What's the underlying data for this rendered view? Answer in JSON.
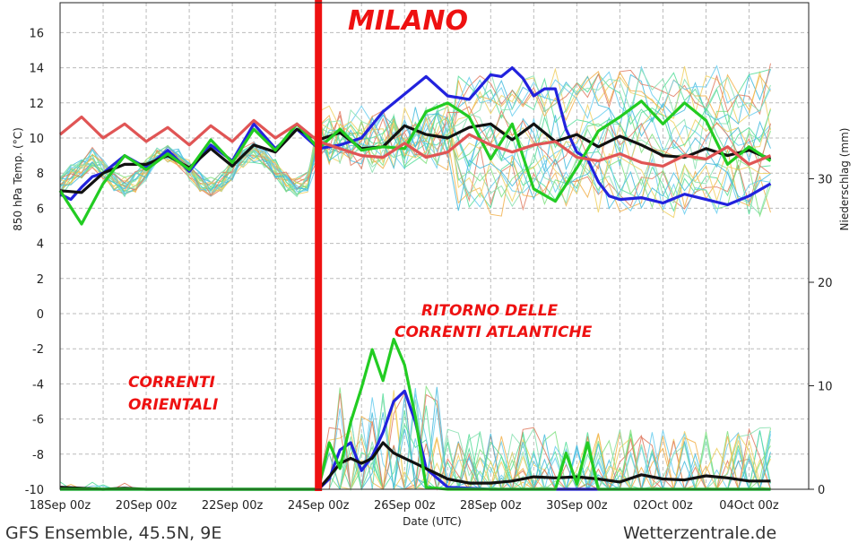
{
  "chart_data": {
    "type": "line",
    "title": "MILANO",
    "xlabel": "Date (UTC)",
    "ylabel_left": "850 hPa Temp. (°C)",
    "ylabel_right": "Niederschlag (mm)",
    "x_ticks": [
      "18Sep 00z",
      "20Sep 00z",
      "22Sep 00z",
      "24Sep 00z",
      "26Sep 00z",
      "28Sep 00z",
      "30Sep 00z",
      "02Oct 00z",
      "04Oct 00z"
    ],
    "y_left_ticks": [
      16,
      14,
      12,
      10,
      8,
      6,
      4,
      2,
      0,
      -2,
      -4,
      -6,
      -8,
      -10
    ],
    "y_left_lim": [
      -10,
      17.5
    ],
    "y_right_ticks": [
      0,
      10,
      20,
      30
    ],
    "y_right_lim": [
      0,
      31.5
    ],
    "x_range_days": [
      0,
      16.5
    ],
    "grid": true,
    "marker_date": "24Sep 00z",
    "annotations": [
      {
        "text_lines": [
          "CORRENTI",
          "ORIENTALI"
        ]
      },
      {
        "text_lines": [
          "RITORNO DELLE",
          "CORRENTI ATLANTICHE"
        ]
      }
    ],
    "series": [
      {
        "role": "temperature-control",
        "color": "#2222dd",
        "x": [
          0,
          0.25,
          0.5,
          0.75,
          1,
          1.5,
          2,
          2.5,
          3,
          3.5,
          4,
          4.5,
          5,
          5.5,
          6,
          6.5,
          7,
          7.5,
          8,
          8.5,
          9,
          9.5,
          10,
          10.25,
          10.5,
          10.75,
          11,
          11.25,
          11.5,
          11.75,
          12,
          12.25,
          12.5,
          12.75,
          13,
          13.5,
          14,
          14.5,
          15,
          15.5,
          16,
          16.5
        ],
        "y": [
          6.8,
          6.5,
          7.2,
          7.8,
          8.0,
          9.0,
          8.3,
          9.3,
          8.1,
          9.6,
          8.7,
          10.8,
          9.4,
          10.5,
          9.4,
          9.6,
          10.0,
          11.5,
          12.5,
          13.5,
          12.4,
          12.2,
          13.6,
          13.5,
          14.0,
          13.4,
          12.4,
          12.8,
          12.8,
          10.5,
          9.2,
          8.8,
          7.5,
          6.7,
          6.5,
          6.6,
          6.3,
          6.8,
          6.5,
          6.2,
          6.7,
          7.4
        ]
      },
      {
        "role": "temperature-mean",
        "color": "#111111",
        "x": [
          0,
          0.5,
          1,
          1.5,
          2,
          2.5,
          3,
          3.5,
          4,
          4.5,
          5,
          5.5,
          6,
          6.5,
          7,
          7.5,
          8,
          8.5,
          9,
          9.5,
          10,
          10.5,
          11,
          11.5,
          12,
          12.5,
          13,
          13.5,
          14,
          14.5,
          15,
          15.5,
          16,
          16.5
        ],
        "y": [
          7.0,
          6.9,
          8.0,
          8.5,
          8.5,
          9.0,
          8.3,
          9.4,
          8.4,
          9.6,
          9.2,
          10.5,
          9.9,
          10.3,
          9.4,
          9.5,
          10.7,
          10.2,
          10.0,
          10.6,
          10.8,
          9.9,
          10.8,
          9.8,
          10.2,
          9.5,
          10.1,
          9.6,
          9.0,
          8.9,
          9.4,
          9.0,
          9.3,
          8.8
        ]
      },
      {
        "role": "temperature-member",
        "color": "#22cc22",
        "x": [
          0,
          0.5,
          1,
          1.5,
          2,
          2.5,
          3,
          3.5,
          4,
          4.5,
          5,
          5.5,
          6,
          6.5,
          7,
          7.5,
          8,
          8.5,
          9,
          9.5,
          10,
          10.5,
          11,
          11.5,
          12,
          12.5,
          13,
          13.5,
          14,
          14.5,
          15,
          15.5,
          16,
          16.5
        ],
        "y": [
          7.0,
          5.1,
          7.4,
          9.0,
          8.2,
          9.1,
          8.2,
          9.9,
          8.6,
          10.5,
          9.3,
          10.8,
          9.4,
          10.5,
          9.3,
          9.5,
          9.4,
          11.5,
          12.0,
          11.2,
          8.8,
          10.8,
          7.1,
          6.4,
          8.3,
          10.4,
          11.2,
          12.1,
          10.8,
          12.0,
          11.0,
          8.5,
          9.5,
          8.7
        ]
      },
      {
        "role": "temperature-member",
        "color": "#e05555",
        "x": [
          0,
          0.5,
          1,
          1.5,
          2,
          2.5,
          3,
          3.5,
          4,
          4.5,
          5,
          5.5,
          6,
          6.5,
          7,
          7.5,
          8,
          8.5,
          9,
          9.5,
          10,
          10.5,
          11,
          11.5,
          12,
          12.5,
          13,
          13.5,
          14,
          14.5,
          15,
          15.5,
          16,
          16.5
        ],
        "y": [
          10.2,
          11.2,
          10.0,
          10.8,
          9.8,
          10.6,
          9.6,
          10.7,
          9.8,
          11.0,
          10.0,
          10.8,
          9.8,
          9.4,
          9.0,
          8.9,
          9.7,
          8.9,
          9.2,
          10.2,
          9.6,
          9.2,
          9.6,
          9.8,
          8.9,
          8.7,
          9.1,
          8.6,
          8.4,
          9.0,
          8.8,
          9.5,
          8.5,
          9.0
        ]
      },
      {
        "role": "precipitation-control",
        "color": "#2222dd",
        "x": [
          0,
          1,
          2,
          3,
          4,
          5,
          5.5,
          6,
          6.25,
          6.5,
          6.75,
          7,
          7.25,
          7.5,
          7.75,
          8,
          8.25,
          8.5,
          9,
          10,
          12,
          14,
          16.5
        ],
        "y": [
          0,
          0,
          0,
          0,
          0,
          0,
          0,
          0,
          1.0,
          3.8,
          4.5,
          1.8,
          3.2,
          5.5,
          8.5,
          9.5,
          6.5,
          2.0,
          0.2,
          0,
          0,
          0,
          0
        ]
      },
      {
        "role": "precipitation-mean",
        "color": "#111111",
        "x": [
          0,
          0.5,
          1,
          1.5,
          2,
          2.5,
          3,
          3.5,
          4,
          4.5,
          5,
          5.5,
          6,
          6.25,
          6.5,
          6.75,
          7,
          7.25,
          7.5,
          7.75,
          8,
          8.25,
          8.5,
          9,
          9.5,
          10,
          10.5,
          11,
          11.5,
          12,
          12.5,
          13,
          13.5,
          14,
          14.5,
          15,
          15.5,
          16,
          16.5
        ],
        "y": [
          0.2,
          0.1,
          0,
          0.1,
          0,
          0,
          0,
          0,
          0,
          0,
          0,
          0,
          0,
          1.2,
          2.5,
          3.0,
          2.5,
          3.0,
          4.5,
          3.5,
          3.0,
          2.5,
          2.0,
          1.0,
          0.6,
          0.6,
          0.8,
          1.2,
          1.1,
          1.2,
          1.0,
          0.7,
          1.4,
          1.0,
          0.9,
          1.3,
          1.1,
          0.8,
          0.8
        ]
      },
      {
        "role": "precipitation-member",
        "color": "#22cc22",
        "x": [
          0,
          1,
          2,
          3,
          4,
          5,
          5.5,
          6,
          6.25,
          6.5,
          6.75,
          7,
          7.25,
          7.5,
          7.75,
          8,
          8.25,
          8.5,
          9,
          9.5,
          10,
          10.5,
          11,
          11.5,
          11.75,
          12,
          12.25,
          12.5,
          13,
          14,
          15,
          16.5
        ],
        "y": [
          0,
          0,
          0,
          0,
          0,
          0,
          0,
          0,
          4.5,
          2.0,
          6.5,
          9.8,
          13.5,
          10.5,
          14.5,
          12.0,
          7.0,
          0.2,
          0,
          0,
          0,
          0,
          0,
          0,
          3.5,
          0.5,
          4.5,
          0,
          0,
          0,
          0,
          0
        ]
      }
    ]
  },
  "footer": {
    "left": "GFS Ensemble, 45.5N, 9E",
    "right": "Wetterzentrale.de"
  },
  "colors": {
    "accent_red": "#ee1111",
    "grid": "#bbbbbb"
  }
}
